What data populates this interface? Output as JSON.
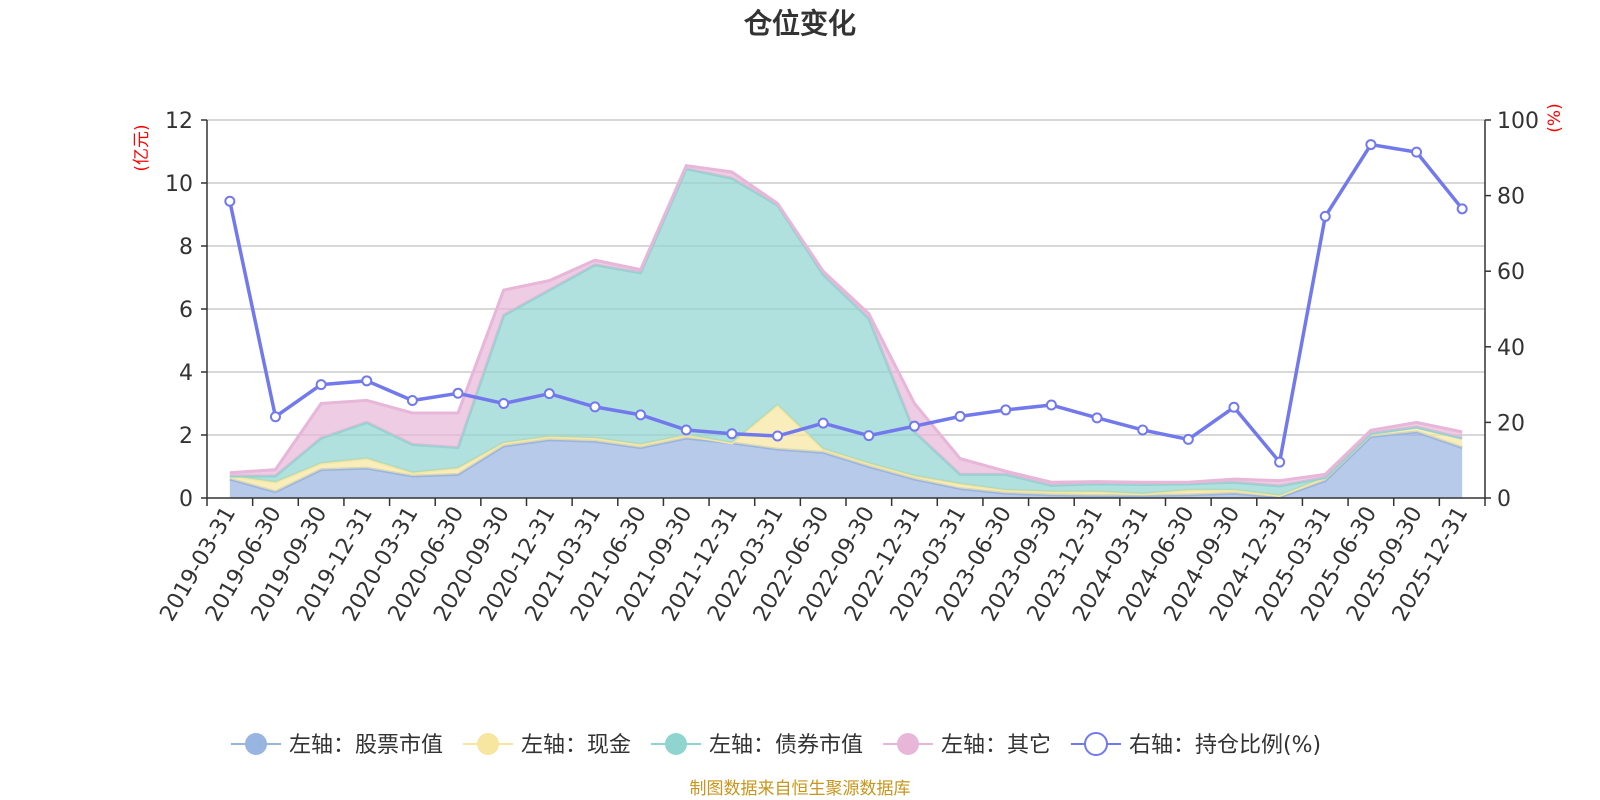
{
  "chart_data": {
    "type": "area",
    "title": "仓位变化",
    "left_unit": "(亿元)",
    "right_unit": "(%)",
    "categories": [
      "2019-03-31",
      "2019-06-30",
      "2019-09-30",
      "2019-12-31",
      "2020-03-31",
      "2020-06-30",
      "2020-09-30",
      "2020-12-31",
      "2021-03-31",
      "2021-06-30",
      "2021-09-30",
      "2021-12-31",
      "2022-03-31",
      "2022-06-30",
      "2022-09-30",
      "2022-12-31",
      "2023-03-31",
      "2023-06-30",
      "2023-09-30",
      "2023-12-31",
      "2024-03-31",
      "2024-06-30",
      "2024-09-30",
      "2024-12-31",
      "2025-03-31",
      "2025-06-30",
      "2025-09-30",
      "2025-12-31"
    ],
    "ylim_left": [
      0,
      12
    ],
    "yticks_left": [
      0,
      2,
      4,
      6,
      8,
      10,
      12
    ],
    "ylim_right": [
      0,
      100
    ],
    "yticks_right": [
      0,
      20,
      40,
      60,
      80,
      100
    ],
    "series": [
      {
        "name": "左轴：股票市值",
        "axis": "left",
        "stacked": true,
        "color": "#98b4e0",
        "values": [
          0.6,
          0.2,
          0.9,
          0.95,
          0.7,
          0.75,
          1.65,
          1.85,
          1.8,
          1.6,
          1.9,
          1.75,
          1.55,
          1.45,
          1.0,
          0.6,
          0.3,
          0.15,
          0.1,
          0.08,
          0.08,
          0.1,
          0.15,
          0.03,
          0.55,
          1.95,
          2.1,
          1.6
        ]
      },
      {
        "name": "左轴：现金",
        "axis": "left",
        "stacked": true,
        "color": "#f7e6a0",
        "values": [
          0.1,
          0.3,
          0.2,
          0.3,
          0.1,
          0.2,
          0.1,
          0.1,
          0.1,
          0.1,
          0.1,
          0.0,
          1.4,
          0.1,
          0.1,
          0.1,
          0.15,
          0.1,
          0.1,
          0.12,
          0.05,
          0.15,
          0.1,
          0.05,
          0.1,
          0.1,
          0.15,
          0.3
        ]
      },
      {
        "name": "左轴：债券市值",
        "axis": "left",
        "stacked": true,
        "color": "#90d4d0",
        "values": [
          0.0,
          0.2,
          0.8,
          1.15,
          0.9,
          0.65,
          4.05,
          4.65,
          5.5,
          5.45,
          8.45,
          8.4,
          6.35,
          5.55,
          4.6,
          1.4,
          0.3,
          0.5,
          0.2,
          0.25,
          0.3,
          0.2,
          0.25,
          0.3,
          0.0,
          0.0,
          0.0,
          0.0
        ]
      },
      {
        "name": "左轴：其它",
        "axis": "left",
        "stacked": true,
        "color": "#e7b6d9",
        "values": [
          0.1,
          0.2,
          1.1,
          0.7,
          1.0,
          1.1,
          0.8,
          0.3,
          0.15,
          0.1,
          0.1,
          0.2,
          0.05,
          0.1,
          0.15,
          0.9,
          0.5,
          0.1,
          0.1,
          0.07,
          0.07,
          0.05,
          0.1,
          0.17,
          0.1,
          0.1,
          0.15,
          0.2
        ]
      },
      {
        "name": "右轴：持仓比例(%)",
        "axis": "right",
        "stacked": false,
        "color": "#7279ed",
        "values": [
          78.5,
          21.5,
          30,
          31,
          25.8,
          27.7,
          25,
          27.6,
          24.1,
          22,
          18,
          17,
          16.4,
          19.8,
          16.5,
          19,
          21.6,
          23.3,
          24.6,
          21.2,
          18,
          15.5,
          24,
          9.5,
          74.5,
          93.5,
          91.5,
          76.5
        ]
      }
    ],
    "source_note": "制图数据来自恒生聚源数据库"
  }
}
